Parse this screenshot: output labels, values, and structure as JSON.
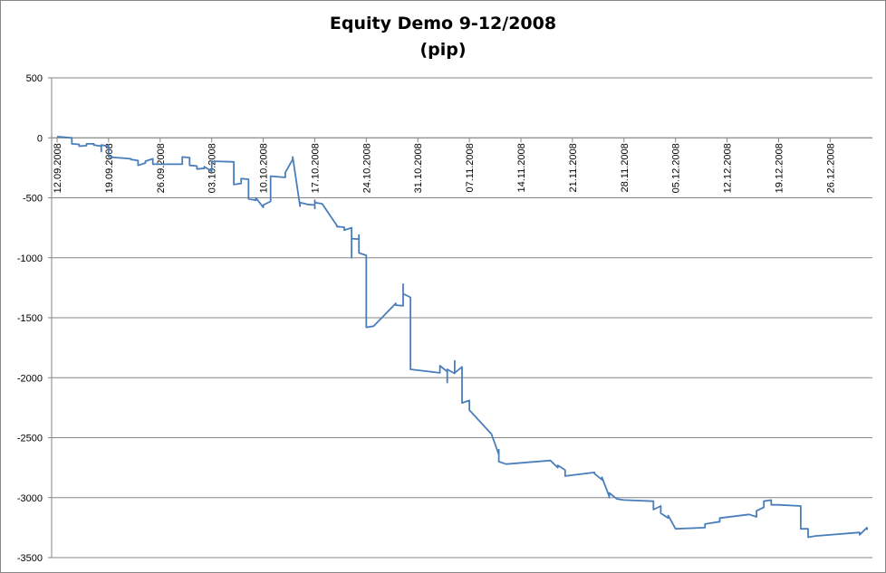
{
  "chart_data": {
    "type": "line",
    "title": "Equity Demo 9-12/2008",
    "subtitle": "(pip)",
    "xlabel": "",
    "ylabel": "",
    "ylim": [
      -3500,
      500
    ],
    "y_ticks": [
      500,
      0,
      -500,
      -1000,
      -1500,
      -2000,
      -2500,
      -3000,
      -3500
    ],
    "y_tick_labels": [
      "500",
      "0",
      "-500",
      "-1000",
      "-1500",
      "-2000",
      "-2500",
      "-3000",
      "-3500"
    ],
    "x_range": [
      "2008-09-12",
      "2008-12-31"
    ],
    "x_tick_labels": [
      "12.09.2008",
      "19.09.2008",
      "26.09.2008",
      "03.10.2008",
      "10.10.2008",
      "17.10.2008",
      "24.10.2008",
      "31.10.2008",
      "07.11.2008",
      "14.11.2008",
      "21.11.2008",
      "28.11.2008",
      "05.12.2008",
      "12.12.2008",
      "19.12.2008",
      "26.12.2008"
    ],
    "grid": true,
    "legend": "none",
    "line_color": "#4a7ebb",
    "series": [
      {
        "x": [
          "2008-09-12",
          "2008-09-14",
          "2008-09-14",
          "2008-09-15",
          "2008-09-15",
          "2008-09-16",
          "2008-09-16",
          "2008-09-17",
          "2008-09-17",
          "2008-09-18",
          "2008-09-18",
          "2008-09-18",
          "2008-09-19",
          "2008-09-19",
          "2008-09-22",
          "2008-09-22",
          "2008-09-23",
          "2008-09-23",
          "2008-09-24",
          "2008-09-24",
          "2008-09-25",
          "2008-09-25",
          "2008-09-29",
          "2008-09-29",
          "2008-09-30",
          "2008-09-30",
          "2008-10-01",
          "2008-10-01",
          "2008-10-02",
          "2008-10-02",
          "2008-10-03",
          "2008-10-03",
          "2008-10-06",
          "2008-10-06",
          "2008-10-07",
          "2008-10-07",
          "2008-10-07",
          "2008-10-08",
          "2008-10-08",
          "2008-10-09",
          "2008-10-09",
          "2008-10-10",
          "2008-10-10",
          "2008-10-11",
          "2008-10-11",
          "2008-10-13",
          "2008-10-13",
          "2008-10-14",
          "2008-10-14",
          "2008-10-15",
          "2008-10-15",
          "2008-10-15",
          "2008-10-16",
          "2008-10-17",
          "2008-10-17",
          "2008-10-17",
          "2008-10-17",
          "2008-10-18",
          "2008-10-20",
          "2008-10-20",
          "2008-10-21",
          "2008-10-21",
          "2008-10-22",
          "2008-10-22",
          "2008-10-22",
          "2008-10-23",
          "2008-10-23",
          "2008-10-23",
          "2008-10-24",
          "2008-10-24",
          "2008-10-25",
          "2008-10-28",
          "2008-10-28",
          "2008-10-29",
          "2008-10-29",
          "2008-10-29",
          "2008-10-30",
          "2008-10-30",
          "2008-10-30",
          "2008-11-03",
          "2008-11-03",
          "2008-11-04",
          "2008-11-04",
          "2008-11-04",
          "2008-11-05",
          "2008-11-05",
          "2008-11-05",
          "2008-11-06",
          "2008-11-06",
          "2008-11-07",
          "2008-11-07",
          "2008-11-07",
          "2008-11-10",
          "2008-11-10",
          "2008-11-11",
          "2008-11-11",
          "2008-11-11",
          "2008-11-12",
          "2008-11-18",
          "2008-11-18",
          "2008-11-19",
          "2008-11-19",
          "2008-11-20",
          "2008-11-20",
          "2008-11-24",
          "2008-11-24",
          "2008-11-25",
          "2008-11-25",
          "2008-11-26",
          "2008-11-26",
          "2008-11-26",
          "2008-11-27",
          "2008-11-28",
          "2008-12-02",
          "2008-12-02",
          "2008-12-03",
          "2008-12-03",
          "2008-12-04",
          "2008-12-04",
          "2008-12-05",
          "2008-12-09",
          "2008-12-09",
          "2008-12-11",
          "2008-12-11",
          "2008-12-15",
          "2008-12-16",
          "2008-12-16",
          "2008-12-17",
          "2008-12-17",
          "2008-12-18",
          "2008-12-18",
          "2008-12-19",
          "2008-12-22",
          "2008-12-22",
          "2008-12-23",
          "2008-12-23",
          "2008-12-24",
          "2008-12-30",
          "2008-12-30",
          "2008-12-31",
          "2008-12-31"
        ],
        "values": [
          10,
          0,
          -50,
          -55,
          -70,
          -65,
          -50,
          -50,
          -60,
          -70,
          -115,
          -60,
          -70,
          -160,
          -175,
          -180,
          -190,
          -230,
          -210,
          -195,
          -175,
          -220,
          -220,
          -160,
          -165,
          -230,
          -235,
          -260,
          -255,
          -240,
          -280,
          -195,
          -200,
          -390,
          -380,
          -360,
          -340,
          -345,
          -510,
          -520,
          -500,
          -580,
          -560,
          -530,
          -320,
          -330,
          -290,
          -180,
          -160,
          -570,
          -560,
          -540,
          -555,
          -560,
          -520,
          -590,
          -540,
          -550,
          -730,
          -740,
          -745,
          -770,
          -750,
          -1000,
          -840,
          -845,
          -810,
          -960,
          -980,
          -1580,
          -1570,
          -1380,
          -1395,
          -1400,
          -1220,
          -1300,
          -1330,
          -1920,
          -1930,
          -1960,
          -1900,
          -1950,
          -2040,
          -1930,
          -1965,
          -1860,
          -1960,
          -1910,
          -2210,
          -2190,
          -2240,
          -2270,
          -2470,
          -2470,
          -2640,
          -2600,
          -2700,
          -2720,
          -2690,
          -2690,
          -2750,
          -2730,
          -2770,
          -2820,
          -2790,
          -2800,
          -2850,
          -2830,
          -2990,
          -3000,
          -2960,
          -3010,
          -3020,
          -3030,
          -3100,
          -3070,
          -3130,
          -3170,
          -3150,
          -3260,
          -3250,
          -3220,
          -3200,
          -3170,
          -3140,
          -3160,
          -3110,
          -3080,
          -3030,
          -3020,
          -3060,
          -3060,
          -3070,
          -3260,
          -3260,
          -3330,
          -3320,
          -3290,
          -3310,
          -3250,
          -3270
        ]
      }
    ]
  }
}
